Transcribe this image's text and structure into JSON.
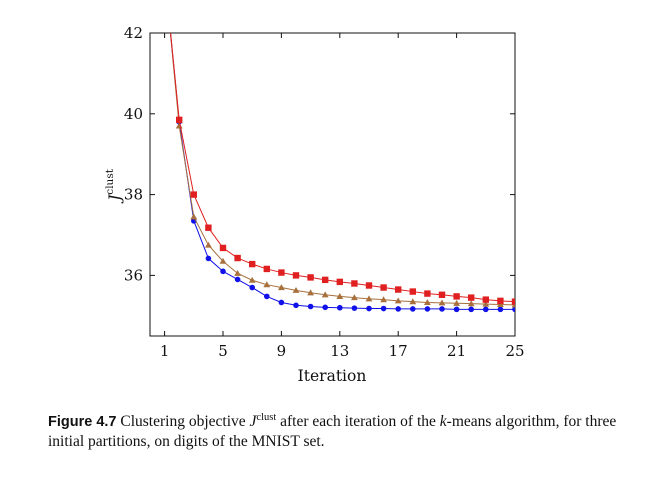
{
  "chart_data": {
    "type": "line",
    "xlabel": "Iteration",
    "ylabel": "J",
    "ylabel_superscript": "clust",
    "xlim": [
      0,
      25
    ],
    "ylim": [
      34.5,
      42
    ],
    "xticks": [
      1,
      5,
      9,
      13,
      17,
      21,
      25
    ],
    "yticks": [
      36,
      38,
      40,
      42
    ],
    "grid": false,
    "series": [
      {
        "color": "#1010e8",
        "marker": "circle",
        "x": [
          1,
          2,
          3,
          4,
          5,
          6,
          7,
          8,
          9,
          10,
          11,
          12,
          13,
          14,
          15,
          16,
          17,
          18,
          19,
          20,
          21,
          22,
          23,
          24,
          25
        ],
        "values": [
          43.5,
          39.8,
          37.35,
          36.42,
          36.1,
          35.9,
          35.7,
          35.48,
          35.33,
          35.26,
          35.23,
          35.21,
          35.2,
          35.19,
          35.18,
          35.18,
          35.17,
          35.17,
          35.17,
          35.17,
          35.16,
          35.16,
          35.16,
          35.16,
          35.16
        ]
      },
      {
        "color": "#a8703c",
        "marker": "triangle",
        "x": [
          1,
          2,
          3,
          4,
          5,
          6,
          7,
          8,
          9,
          10,
          11,
          12,
          13,
          14,
          15,
          16,
          17,
          18,
          19,
          20,
          21,
          22,
          23,
          24,
          25
        ],
        "values": [
          43.5,
          39.7,
          37.45,
          36.75,
          36.35,
          36.05,
          35.88,
          35.77,
          35.7,
          35.63,
          35.57,
          35.52,
          35.48,
          35.45,
          35.42,
          35.4,
          35.37,
          35.35,
          35.33,
          35.32,
          35.31,
          35.3,
          35.29,
          35.28,
          35.27
        ]
      },
      {
        "color": "#e02020",
        "marker": "square",
        "x": [
          1,
          2,
          3,
          4,
          5,
          6,
          7,
          8,
          9,
          10,
          11,
          12,
          13,
          14,
          15,
          16,
          17,
          18,
          19,
          20,
          21,
          22,
          23,
          24,
          25
        ],
        "values": [
          43.5,
          39.85,
          38.0,
          37.18,
          36.68,
          36.43,
          36.28,
          36.16,
          36.07,
          36.0,
          35.95,
          35.89,
          35.84,
          35.8,
          35.75,
          35.7,
          35.65,
          35.6,
          35.55,
          35.52,
          35.48,
          35.45,
          35.4,
          35.37,
          35.35
        ]
      }
    ]
  },
  "caption": {
    "figure_label": "Figure 4.7",
    "text_1": " Clustering objective ",
    "symbol": "J",
    "symbol_sup": "clust",
    "text_2": " after each iteration of the ",
    "k": "k",
    "text_3": "-means algorithm, for three initial partitions, on digits of the MNIST set."
  }
}
